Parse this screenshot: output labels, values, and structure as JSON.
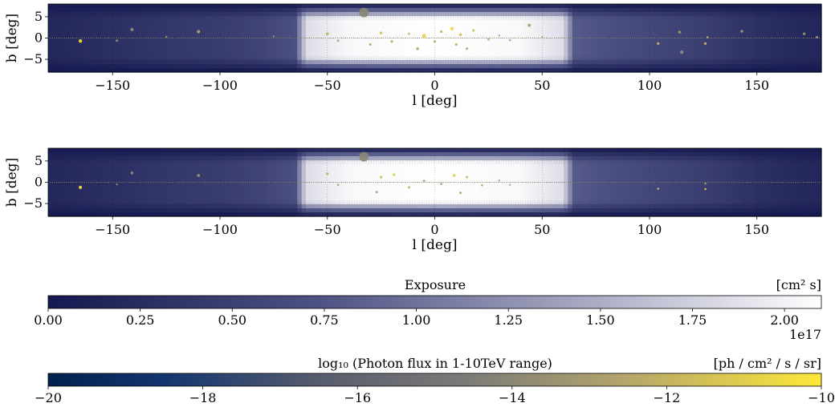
{
  "chart_data": [
    {
      "type": "heatmap",
      "xlabel": "l [deg]",
      "ylabel": "b [deg]",
      "xlim": [
        -180,
        180
      ],
      "ylim": [
        -8,
        8
      ],
      "x_ticks": [
        -150,
        -100,
        -50,
        0,
        50,
        100,
        150
      ],
      "y_ticks": [
        -5,
        0,
        5
      ],
      "x_tick_labels": [
        "−150",
        "−100",
        "−50",
        "0",
        "50",
        "100",
        "150"
      ],
      "y_tick_labels": [
        "−5",
        "0",
        "5"
      ],
      "exposure_profile": [
        {
          "l": -180,
          "value": 0.18
        },
        {
          "l": -160,
          "value": 0.25
        },
        {
          "l": -140,
          "value": 0.32
        },
        {
          "l": -120,
          "value": 0.4
        },
        {
          "l": -100,
          "value": 0.45
        },
        {
          "l": -80,
          "value": 0.55
        },
        {
          "l": -65,
          "value": 0.7
        },
        {
          "l": -60,
          "value": 1.85
        },
        {
          "l": -40,
          "value": 2.05
        },
        {
          "l": 0,
          "value": 2.1
        },
        {
          "l": 40,
          "value": 2.05
        },
        {
          "l": 60,
          "value": 1.85
        },
        {
          "l": 65,
          "value": 0.8
        },
        {
          "l": 90,
          "value": 0.65
        },
        {
          "l": 110,
          "value": 0.55
        },
        {
          "l": 130,
          "value": 0.45
        },
        {
          "l": 150,
          "value": 0.3
        },
        {
          "l": 170,
          "value": 0.2
        },
        {
          "l": 180,
          "value": 0.18
        }
      ],
      "sources": [
        {
          "l": -33,
          "b": 6,
          "size": 6,
          "flux": -14.0
        },
        {
          "l": -165,
          "b": -0.7,
          "size": 2.2,
          "flux": -10.3
        },
        {
          "l": -141,
          "b": 2,
          "size": 2.0,
          "flux": -13.5
        },
        {
          "l": -110,
          "b": 1.5,
          "size": 2.0,
          "flux": -12.5
        },
        {
          "l": -148,
          "b": -0.6,
          "size": 1.5,
          "flux": -13.6
        },
        {
          "l": -125,
          "b": 0.3,
          "size": 1.3,
          "flux": -13.6
        },
        {
          "l": -75,
          "b": 0.4,
          "size": 1.2,
          "flux": -13.4
        },
        {
          "l": -50,
          "b": 1,
          "size": 1.8,
          "flux": -12.0
        },
        {
          "l": -45,
          "b": -0.6,
          "size": 1.5,
          "flux": -12.5
        },
        {
          "l": -30,
          "b": -1.5,
          "size": 1.5,
          "flux": -12.8
        },
        {
          "l": -25,
          "b": 1.2,
          "size": 1.8,
          "flux": -11.5
        },
        {
          "l": -20,
          "b": -0.8,
          "size": 1.6,
          "flux": -12.3
        },
        {
          "l": -12,
          "b": 1,
          "size": 1.4,
          "flux": -11.8
        },
        {
          "l": -8,
          "b": -2.5,
          "size": 1.8,
          "flux": -12.6
        },
        {
          "l": -5,
          "b": 0.5,
          "size": 2.5,
          "flux": -10.9
        },
        {
          "l": 0,
          "b": -0.8,
          "size": 1.5,
          "flux": -12.8
        },
        {
          "l": 3,
          "b": 1.5,
          "size": 1.6,
          "flux": -12.0
        },
        {
          "l": 8,
          "b": 2.2,
          "size": 2.2,
          "flux": -10.6
        },
        {
          "l": 10,
          "b": -1.5,
          "size": 1.6,
          "flux": -12.2
        },
        {
          "l": 12,
          "b": 0.8,
          "size": 1.8,
          "flux": -11.4
        },
        {
          "l": 15,
          "b": -2.5,
          "size": 1.5,
          "flux": -12.9
        },
        {
          "l": 18,
          "b": 1.8,
          "size": 1.6,
          "flux": -11.7
        },
        {
          "l": 25,
          "b": -0.3,
          "size": 1.4,
          "flux": -12.5
        },
        {
          "l": 30,
          "b": 0.6,
          "size": 1.2,
          "flux": -13.0
        },
        {
          "l": 35,
          "b": -0.5,
          "size": 1.3,
          "flux": -12.6
        },
        {
          "l": 44,
          "b": 3,
          "size": 2.0,
          "flux": -13.0
        },
        {
          "l": 50,
          "b": 0.2,
          "size": 1.2,
          "flux": -12.8
        },
        {
          "l": 104,
          "b": -1.3,
          "size": 1.6,
          "flux": -11.8
        },
        {
          "l": 114,
          "b": 1.4,
          "size": 1.8,
          "flux": -13.2
        },
        {
          "l": 115,
          "b": -3.3,
          "size": 2.2,
          "flux": -13.7
        },
        {
          "l": 126,
          "b": -1.3,
          "size": 1.6,
          "flux": -11.8
        },
        {
          "l": 127,
          "b": 0.2,
          "size": 1.3,
          "flux": -12.1
        },
        {
          "l": 143,
          "b": 1.6,
          "size": 1.8,
          "flux": -13.2
        },
        {
          "l": 172,
          "b": 1.0,
          "size": 1.6,
          "flux": -13.0
        },
        {
          "l": 178,
          "b": 0.2,
          "size": 1.5,
          "flux": -12.7
        }
      ]
    },
    {
      "type": "heatmap",
      "xlabel": "l [deg]",
      "ylabel": "b [deg]",
      "xlim": [
        -180,
        180
      ],
      "ylim": [
        -8,
        8
      ],
      "x_ticks": [
        -150,
        -100,
        -50,
        0,
        50,
        100,
        150
      ],
      "y_ticks": [
        -5,
        0,
        5
      ],
      "x_tick_labels": [
        "−150",
        "−100",
        "−50",
        "0",
        "50",
        "100",
        "150"
      ],
      "y_tick_labels": [
        "−5",
        "0",
        "5"
      ],
      "exposure_profile": [
        {
          "l": -180,
          "value": 0.18
        },
        {
          "l": -160,
          "value": 0.25
        },
        {
          "l": -140,
          "value": 0.32
        },
        {
          "l": -120,
          "value": 0.4
        },
        {
          "l": -100,
          "value": 0.45
        },
        {
          "l": -80,
          "value": 0.55
        },
        {
          "l": -65,
          "value": 0.7
        },
        {
          "l": -60,
          "value": 1.85
        },
        {
          "l": -40,
          "value": 2.05
        },
        {
          "l": 0,
          "value": 2.1
        },
        {
          "l": 40,
          "value": 2.05
        },
        {
          "l": 60,
          "value": 1.85
        },
        {
          "l": 65,
          "value": 0.8
        },
        {
          "l": 90,
          "value": 0.65
        },
        {
          "l": 110,
          "value": 0.55
        },
        {
          "l": 130,
          "value": 0.45
        },
        {
          "l": 150,
          "value": 0.3
        },
        {
          "l": 170,
          "value": 0.2
        },
        {
          "l": 180,
          "value": 0.18
        }
      ],
      "sources": [
        {
          "l": -33,
          "b": 6,
          "size": 6,
          "flux": -14.0
        },
        {
          "l": -165,
          "b": -1.2,
          "size": 2.0,
          "flux": -10.2
        },
        {
          "l": -141,
          "b": 2.2,
          "size": 1.8,
          "flux": -13.8
        },
        {
          "l": -110,
          "b": 1.6,
          "size": 1.8,
          "flux": -12.8
        },
        {
          "l": -148,
          "b": -0.5,
          "size": 1.2,
          "flux": -13.5
        },
        {
          "l": -50,
          "b": 2,
          "size": 1.6,
          "flux": -12.2
        },
        {
          "l": -45,
          "b": -0.6,
          "size": 1.4,
          "flux": -12.5
        },
        {
          "l": -27,
          "b": -2.3,
          "size": 1.5,
          "flux": -12.9
        },
        {
          "l": -25,
          "b": 1.2,
          "size": 1.6,
          "flux": -12.0
        },
        {
          "l": -19,
          "b": 1.8,
          "size": 1.6,
          "flux": -11.0
        },
        {
          "l": -12,
          "b": -1.2,
          "size": 1.5,
          "flux": -12.4
        },
        {
          "l": -5,
          "b": 0.3,
          "size": 1.5,
          "flux": -12.6
        },
        {
          "l": 3,
          "b": -0.4,
          "size": 1.4,
          "flux": -12.7
        },
        {
          "l": 9,
          "b": 1.6,
          "size": 1.9,
          "flux": -10.8
        },
        {
          "l": 12,
          "b": -2.5,
          "size": 1.5,
          "flux": -12.9
        },
        {
          "l": 15,
          "b": 1.2,
          "size": 1.5,
          "flux": -12.0
        },
        {
          "l": 22,
          "b": -0.7,
          "size": 1.3,
          "flux": -12.5
        },
        {
          "l": 30,
          "b": 0.4,
          "size": 1.2,
          "flux": -13.0
        },
        {
          "l": 35,
          "b": -0.6,
          "size": 1.2,
          "flux": -12.6
        },
        {
          "l": 104,
          "b": -1.5,
          "size": 1.4,
          "flux": -11.9
        },
        {
          "l": 126,
          "b": -1.6,
          "size": 1.4,
          "flux": -11.6
        },
        {
          "l": 126,
          "b": -0.3,
          "size": 1.2,
          "flux": -12.4
        }
      ]
    },
    {
      "type": "colorbar",
      "label": "Exposure",
      "unit": "[cm² s]",
      "range": [
        0,
        2.1
      ],
      "ticks": [
        0.0,
        0.25,
        0.5,
        0.75,
        1.0,
        1.25,
        1.5,
        1.75,
        2.0
      ],
      "tick_labels": [
        "0.00",
        "0.25",
        "0.50",
        "0.75",
        "1.00",
        "1.25",
        "1.50",
        "1.75",
        "2.00"
      ],
      "offset_text": "1e17"
    },
    {
      "type": "colorbar",
      "label": "log₁₀ (Photon flux in 1-10TeV range)",
      "unit": "[ph / cm² / s / sr]",
      "range": [
        -20,
        -10
      ],
      "ticks": [
        -20,
        -18,
        -16,
        -14,
        -12,
        -10
      ],
      "tick_labels": [
        "−20",
        "−18",
        "−16",
        "−14",
        "−12",
        "−10"
      ]
    }
  ],
  "colors": {
    "exposure_low": "#16194f",
    "exposure_high": "#ffffff",
    "flux_low": "#00224e",
    "flux_mid": "#7b7b78",
    "flux_high": "#fee838"
  }
}
